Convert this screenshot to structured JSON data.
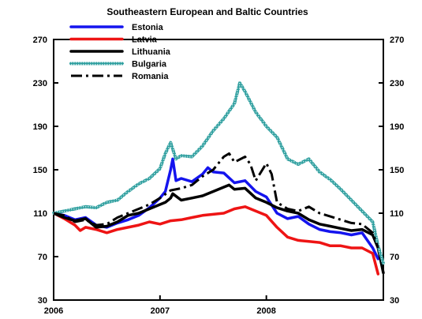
{
  "chart_data": {
    "type": "line",
    "title": "Southeastern European and Baltic Countries",
    "xlabel": "",
    "ylabel": "",
    "x_ticks": [
      "2006",
      "2007",
      "2008"
    ],
    "y_ticks": [
      30,
      70,
      110,
      150,
      190,
      230,
      270
    ],
    "tick_labels": [
      "30",
      "70",
      "110",
      "150",
      "190",
      "230",
      "270"
    ],
    "ylim": [
      30,
      270
    ],
    "x_domain": [
      2006.0,
      2009.1
    ],
    "grid": false,
    "legend_position": "top-left",
    "series": [
      {
        "name": "Estonia",
        "color": "#1414ee",
        "dash": "solid",
        "points": [
          [
            2006.0,
            110
          ],
          [
            2006.1,
            108
          ],
          [
            2006.2,
            104
          ],
          [
            2006.3,
            106
          ],
          [
            2006.4,
            99
          ],
          [
            2006.5,
            97
          ],
          [
            2006.6,
            101
          ],
          [
            2006.7,
            104
          ],
          [
            2006.8,
            108
          ],
          [
            2006.9,
            115
          ],
          [
            2007.0,
            124
          ],
          [
            2007.05,
            130
          ],
          [
            2007.1,
            150
          ],
          [
            2007.12,
            160
          ],
          [
            2007.15,
            140
          ],
          [
            2007.2,
            142
          ],
          [
            2007.3,
            139
          ],
          [
            2007.4,
            146
          ],
          [
            2007.45,
            152
          ],
          [
            2007.5,
            148
          ],
          [
            2007.6,
            147
          ],
          [
            2007.7,
            138
          ],
          [
            2007.8,
            140
          ],
          [
            2007.9,
            130
          ],
          [
            2008.0,
            125
          ],
          [
            2008.1,
            110
          ],
          [
            2008.2,
            105
          ],
          [
            2008.3,
            107
          ],
          [
            2008.4,
            100
          ],
          [
            2008.5,
            95
          ],
          [
            2008.6,
            93
          ],
          [
            2008.7,
            92
          ],
          [
            2008.8,
            90
          ],
          [
            2008.9,
            92
          ],
          [
            2009.0,
            78
          ],
          [
            2009.05,
            68
          ]
        ]
      },
      {
        "name": "Latvia",
        "color": "#ee1414",
        "dash": "solid",
        "points": [
          [
            2006.0,
            110
          ],
          [
            2006.1,
            105
          ],
          [
            2006.2,
            99
          ],
          [
            2006.25,
            94
          ],
          [
            2006.3,
            97
          ],
          [
            2006.4,
            95
          ],
          [
            2006.5,
            92
          ],
          [
            2006.6,
            95
          ],
          [
            2006.7,
            97
          ],
          [
            2006.8,
            99
          ],
          [
            2006.9,
            102
          ],
          [
            2007.0,
            100
          ],
          [
            2007.1,
            103
          ],
          [
            2007.2,
            104
          ],
          [
            2007.3,
            106
          ],
          [
            2007.4,
            108
          ],
          [
            2007.5,
            109
          ],
          [
            2007.6,
            110
          ],
          [
            2007.7,
            114
          ],
          [
            2007.8,
            116
          ],
          [
            2007.9,
            112
          ],
          [
            2008.0,
            108
          ],
          [
            2008.1,
            97
          ],
          [
            2008.2,
            88
          ],
          [
            2008.3,
            85
          ],
          [
            2008.4,
            84
          ],
          [
            2008.5,
            83
          ],
          [
            2008.6,
            80
          ],
          [
            2008.7,
            80
          ],
          [
            2008.8,
            78
          ],
          [
            2008.9,
            78
          ],
          [
            2009.0,
            73
          ],
          [
            2009.05,
            54
          ]
        ]
      },
      {
        "name": "Lithuania",
        "color": "#000000",
        "dash": "solid",
        "points": [
          [
            2006.0,
            110
          ],
          [
            2006.1,
            106
          ],
          [
            2006.2,
            103
          ],
          [
            2006.3,
            105
          ],
          [
            2006.4,
            97
          ],
          [
            2006.5,
            98
          ],
          [
            2006.6,
            102
          ],
          [
            2006.7,
            108
          ],
          [
            2006.8,
            110
          ],
          [
            2006.9,
            114
          ],
          [
            2007.0,
            118
          ],
          [
            2007.05,
            120
          ],
          [
            2007.1,
            124
          ],
          [
            2007.12,
            128
          ],
          [
            2007.2,
            122
          ],
          [
            2007.3,
            124
          ],
          [
            2007.4,
            126
          ],
          [
            2007.5,
            130
          ],
          [
            2007.6,
            134
          ],
          [
            2007.65,
            136
          ],
          [
            2007.7,
            132
          ],
          [
            2007.8,
            133
          ],
          [
            2007.9,
            124
          ],
          [
            2008.0,
            120
          ],
          [
            2008.1,
            115
          ],
          [
            2008.2,
            112
          ],
          [
            2008.3,
            110
          ],
          [
            2008.4,
            104
          ],
          [
            2008.5,
            100
          ],
          [
            2008.6,
            98
          ],
          [
            2008.7,
            96
          ],
          [
            2008.8,
            94
          ],
          [
            2008.9,
            95
          ],
          [
            2009.0,
            90
          ],
          [
            2009.05,
            78
          ],
          [
            2009.1,
            55
          ]
        ]
      },
      {
        "name": "Bulgaria",
        "color": "#2f9f9f",
        "dash": "hatch",
        "points": [
          [
            2006.0,
            110
          ],
          [
            2006.1,
            112
          ],
          [
            2006.2,
            114
          ],
          [
            2006.3,
            116
          ],
          [
            2006.4,
            115
          ],
          [
            2006.5,
            120
          ],
          [
            2006.6,
            122
          ],
          [
            2006.7,
            130
          ],
          [
            2006.8,
            137
          ],
          [
            2006.9,
            142
          ],
          [
            2007.0,
            151
          ],
          [
            2007.05,
            165
          ],
          [
            2007.1,
            175
          ],
          [
            2007.15,
            160
          ],
          [
            2007.2,
            163
          ],
          [
            2007.3,
            162
          ],
          [
            2007.4,
            172
          ],
          [
            2007.5,
            186
          ],
          [
            2007.6,
            197
          ],
          [
            2007.7,
            211
          ],
          [
            2007.75,
            230
          ],
          [
            2007.8,
            222
          ],
          [
            2007.9,
            203
          ],
          [
            2008.0,
            190
          ],
          [
            2008.1,
            180
          ],
          [
            2008.2,
            160
          ],
          [
            2008.3,
            155
          ],
          [
            2008.4,
            160
          ],
          [
            2008.5,
            148
          ],
          [
            2008.6,
            141
          ],
          [
            2008.7,
            132
          ],
          [
            2008.8,
            122
          ],
          [
            2008.9,
            112
          ],
          [
            2009.0,
            102
          ],
          [
            2009.05,
            80
          ],
          [
            2009.1,
            64
          ]
        ]
      },
      {
        "name": "Romania",
        "color": "#000000",
        "dash": "dashdot",
        "points": [
          [
            2006.0,
            110
          ],
          [
            2006.1,
            108
          ],
          [
            2006.2,
            102
          ],
          [
            2006.3,
            104
          ],
          [
            2006.4,
            99
          ],
          [
            2006.5,
            100
          ],
          [
            2006.6,
            106
          ],
          [
            2006.7,
            110
          ],
          [
            2006.8,
            114
          ],
          [
            2006.9,
            118
          ],
          [
            2007.0,
            124
          ],
          [
            2007.1,
            131
          ],
          [
            2007.2,
            133
          ],
          [
            2007.3,
            136
          ],
          [
            2007.4,
            144
          ],
          [
            2007.5,
            150
          ],
          [
            2007.6,
            162
          ],
          [
            2007.65,
            165
          ],
          [
            2007.7,
            157
          ],
          [
            2007.8,
            162
          ],
          [
            2007.85,
            155
          ],
          [
            2007.9,
            140
          ],
          [
            2008.0,
            156
          ],
          [
            2008.05,
            146
          ],
          [
            2008.1,
            120
          ],
          [
            2008.2,
            114
          ],
          [
            2008.3,
            112
          ],
          [
            2008.4,
            116
          ],
          [
            2008.5,
            110
          ],
          [
            2008.6,
            107
          ],
          [
            2008.7,
            104
          ],
          [
            2008.8,
            101
          ],
          [
            2008.9,
            100
          ],
          [
            2009.0,
            92
          ],
          [
            2009.05,
            78
          ]
        ]
      }
    ]
  }
}
